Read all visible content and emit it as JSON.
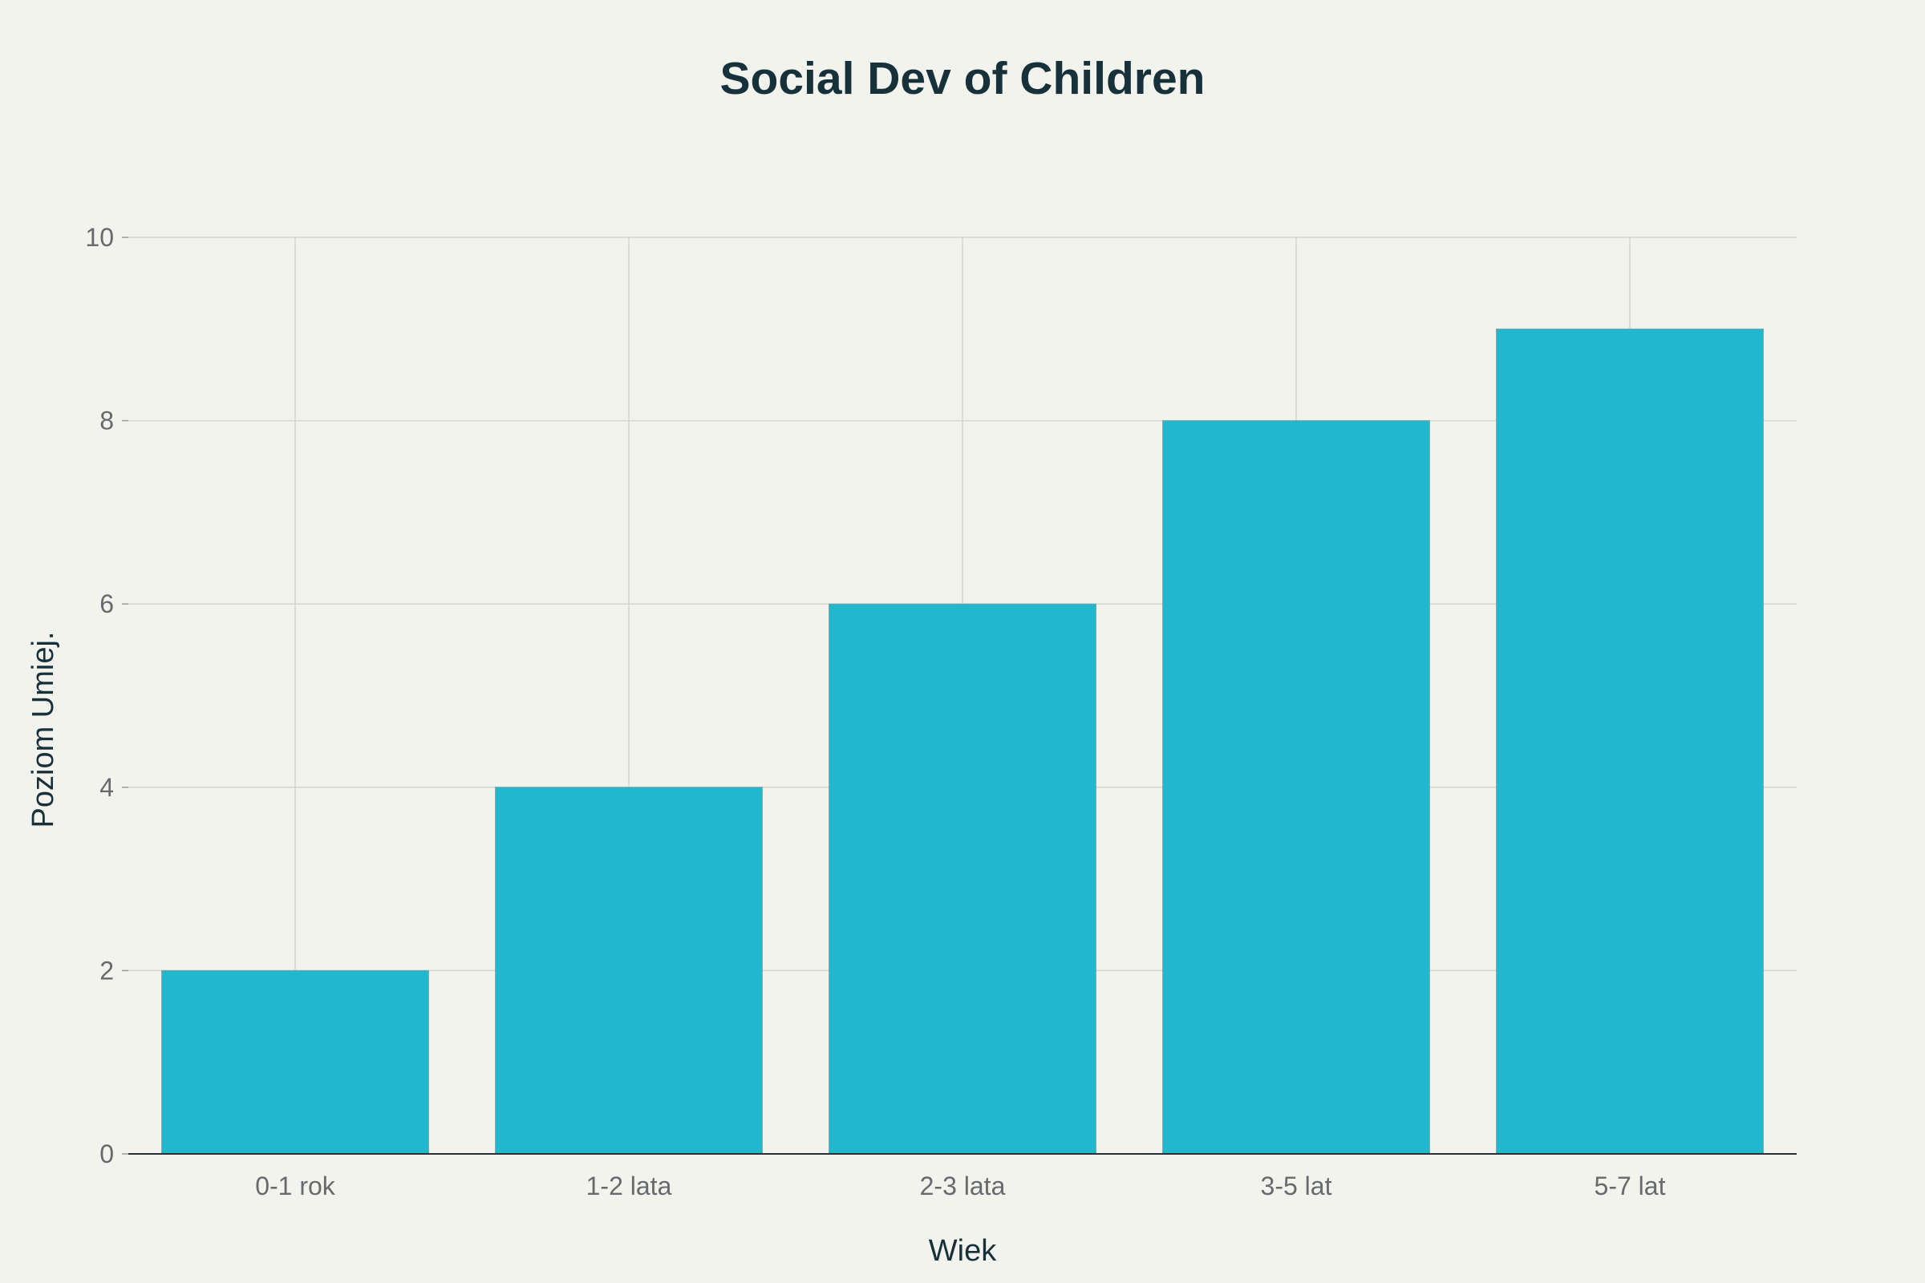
{
  "chart_data": {
    "type": "bar",
    "title": "Social Dev of Children",
    "xlabel": "Wiek",
    "ylabel": "Poziom Umiej.",
    "categories": [
      "0-1 rok",
      "1-2 lata",
      "2-3 lata",
      "3-5 lat",
      "5-7 lat"
    ],
    "values": [
      2,
      4,
      6,
      8,
      9
    ],
    "ylim": [
      0,
      10
    ],
    "yticks": [
      0,
      2,
      4,
      6,
      8,
      10
    ],
    "grid": true,
    "bar_color": "#21b7cc"
  }
}
